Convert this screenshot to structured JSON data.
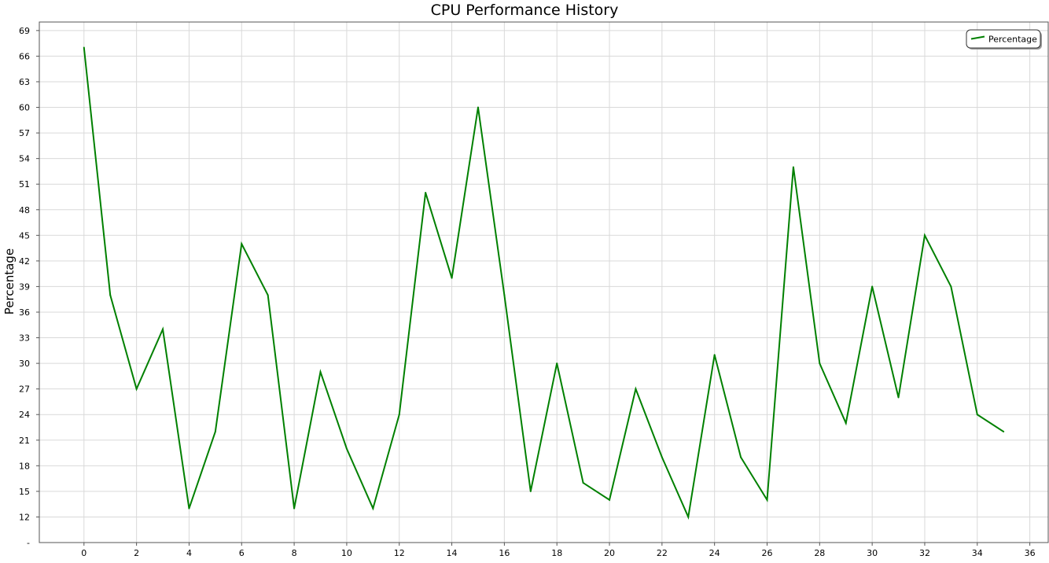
{
  "chart_data": {
    "type": "line",
    "title": "CPU Performance History",
    "xlabel": "",
    "ylabel": "Percentage",
    "xlim": [
      -1.7,
      36.7
    ],
    "ylim": [
      9,
      70
    ],
    "x_ticks": [
      0,
      2,
      4,
      6,
      8,
      10,
      12,
      14,
      16,
      18,
      20,
      22,
      24,
      26,
      28,
      30,
      32,
      34,
      36
    ],
    "y_ticks": [
      12,
      15,
      18,
      21,
      24,
      27,
      30,
      33,
      36,
      39,
      42,
      45,
      48,
      51,
      54,
      57,
      60,
      63,
      66,
      69
    ],
    "y_bottom_label": "-",
    "grid": true,
    "legend_position": "top-right",
    "series": [
      {
        "name": "Percentage",
        "color": "#008000",
        "x": [
          0,
          1,
          2,
          3,
          4,
          5,
          6,
          7,
          8,
          9,
          10,
          11,
          12,
          13,
          14,
          15,
          16,
          17,
          18,
          19,
          20,
          21,
          22,
          23,
          24,
          25,
          26,
          27,
          28,
          29,
          30,
          31,
          32,
          33,
          34,
          35
        ],
        "y": [
          67,
          38,
          27,
          34,
          13,
          22,
          44,
          38,
          13,
          29,
          20,
          13,
          24,
          50,
          40,
          60,
          38,
          15,
          30,
          16,
          14,
          27,
          19,
          12,
          31,
          19,
          14,
          53,
          30,
          23,
          39,
          26,
          45,
          39,
          24,
          22
        ]
      }
    ]
  }
}
